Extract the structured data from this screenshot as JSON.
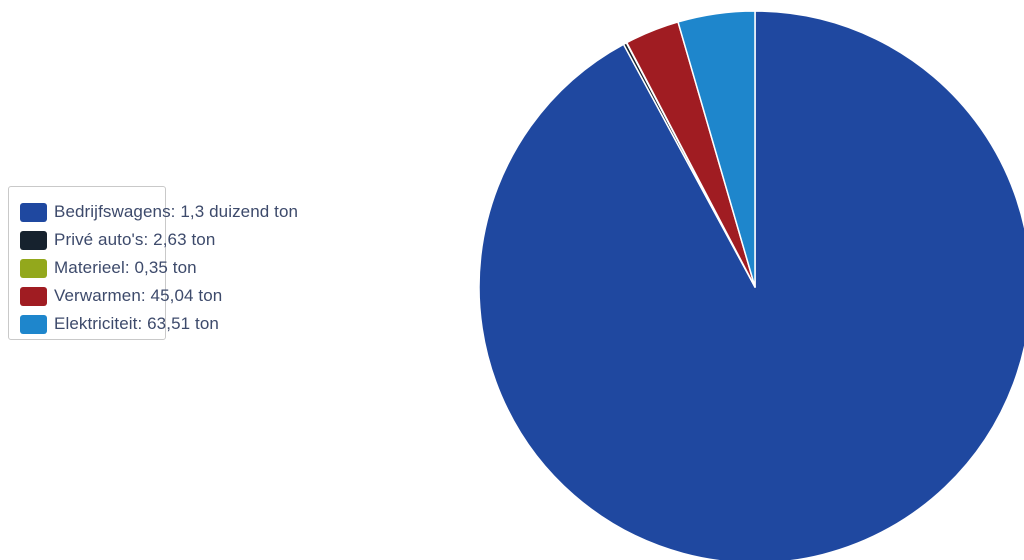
{
  "chart_data": {
    "type": "pie",
    "title": "",
    "legend_position": "left",
    "slices": [
      {
        "label": "Bedrijfswagens: 1,3 duizend ton",
        "value": 1300,
        "color": "#1f48a0"
      },
      {
        "label": "Privé auto's: 2,63 ton",
        "value": 2.63,
        "color": "#16222e"
      },
      {
        "label": "Materieel: 0,35 ton",
        "value": 0.35,
        "color": "#93a81c"
      },
      {
        "label": "Verwarmen: 45,04 ton",
        "value": 45.04,
        "color": "#a01c22"
      },
      {
        "label": "Elektriciteit: 63,51 ton",
        "value": 63.51,
        "color": "#1e86cc"
      }
    ]
  }
}
